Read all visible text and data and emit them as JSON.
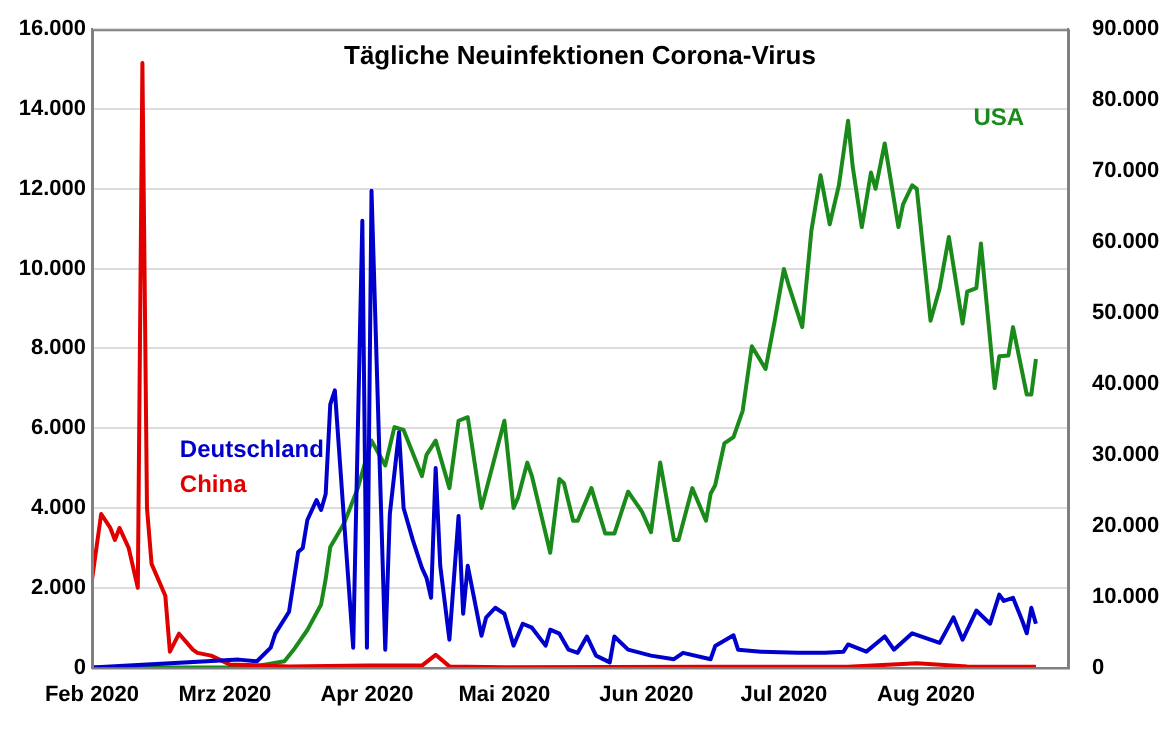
{
  "chart_data": {
    "type": "line",
    "title": "Tägliche Neuinfektionen Corona-Virus",
    "xlim": [
      "2020-02-01",
      "2020-09-01"
    ],
    "xticks": [
      {
        "value": "2020-02-01",
        "label": "Feb 2020"
      },
      {
        "value": "2020-03-01",
        "label": "Mrz 2020"
      },
      {
        "value": "2020-04-01",
        "label": "Apr 2020"
      },
      {
        "value": "2020-05-01",
        "label": "Mai 2020"
      },
      {
        "value": "2020-06-01",
        "label": "Jun 2020"
      },
      {
        "value": "2020-07-01",
        "label": "Jul 2020"
      },
      {
        "value": "2020-08-01",
        "label": "Aug 2020"
      }
    ],
    "ylim": [
      0,
      16000
    ],
    "yticks": [
      {
        "value": 0,
        "label": "0"
      },
      {
        "value": 2000,
        "label": "2.000"
      },
      {
        "value": 4000,
        "label": "4.000"
      },
      {
        "value": 6000,
        "label": "6.000"
      },
      {
        "value": 8000,
        "label": "8.000"
      },
      {
        "value": 10000,
        "label": "10.000"
      },
      {
        "value": 12000,
        "label": "12.000"
      },
      {
        "value": 14000,
        "label": "14.000"
      },
      {
        "value": 16000,
        "label": "16.000"
      }
    ],
    "y2lim": [
      0,
      90000
    ],
    "y2ticks": [
      {
        "value": 0,
        "label": "0"
      },
      {
        "value": 10000,
        "label": "10.000"
      },
      {
        "value": 20000,
        "label": "20.000"
      },
      {
        "value": 30000,
        "label": "30.000"
      },
      {
        "value": 40000,
        "label": "40.000"
      },
      {
        "value": 50000,
        "label": "50.000"
      },
      {
        "value": 60000,
        "label": "60.000"
      },
      {
        "value": 70000,
        "label": "70.000"
      },
      {
        "value": 80000,
        "label": "80.000"
      },
      {
        "value": 90000,
        "label": "90.000"
      }
    ],
    "grid": "y",
    "legend": false,
    "series": [
      {
        "name": "Deutschland",
        "color": "#0000cc",
        "x": [
          "2020-02-01",
          "2020-03-04",
          "2020-03-08",
          "2020-03-11",
          "2020-03-12",
          "2020-03-15",
          "2020-03-17",
          "2020-03-18",
          "2020-03-19",
          "2020-03-21",
          "2020-03-22",
          "2020-03-23",
          "2020-03-24",
          "2020-03-25",
          "2020-03-27",
          "2020-03-29",
          "2020-03-31",
          "2020-04-01",
          "2020-04-02",
          "2020-04-05",
          "2020-04-06",
          "2020-04-08",
          "2020-04-09",
          "2020-04-11",
          "2020-04-13",
          "2020-04-14",
          "2020-04-15",
          "2020-04-16",
          "2020-04-17",
          "2020-04-19",
          "2020-04-21",
          "2020-04-22",
          "2020-04-23",
          "2020-04-26",
          "2020-04-27",
          "2020-04-29",
          "2020-05-01",
          "2020-05-03",
          "2020-05-05",
          "2020-05-07",
          "2020-05-10",
          "2020-05-11",
          "2020-05-13",
          "2020-05-15",
          "2020-05-17",
          "2020-05-19",
          "2020-05-21",
          "2020-05-24",
          "2020-05-25",
          "2020-05-28",
          "2020-06-02",
          "2020-06-07",
          "2020-06-09",
          "2020-06-15",
          "2020-06-16",
          "2020-06-20",
          "2020-06-21",
          "2020-06-26",
          "2020-07-04",
          "2020-07-10",
          "2020-07-14",
          "2020-07-15",
          "2020-07-19",
          "2020-07-23",
          "2020-07-25",
          "2020-07-29",
          "2020-08-04",
          "2020-08-07",
          "2020-08-09",
          "2020-08-12",
          "2020-08-15",
          "2020-08-17",
          "2020-08-18",
          "2020-08-20",
          "2020-08-22",
          "2020-08-23",
          "2020-08-24",
          "2020-08-25"
        ],
        "values": [
          0,
          200,
          160,
          500,
          850,
          1400,
          2900,
          3000,
          3700,
          4200,
          3950,
          4350,
          6600,
          6950,
          3700,
          500,
          11200,
          500,
          11950,
          450,
          3850,
          5900,
          4000,
          3200,
          2500,
          2250,
          1750,
          5000,
          2550,
          700,
          3800,
          1350,
          2550,
          800,
          1250,
          1500,
          1350,
          550,
          1100,
          1000,
          550,
          950,
          850,
          450,
          370,
          780,
          300,
          130,
          780,
          450,
          300,
          210,
          370,
          210,
          540,
          810,
          450,
          400,
          370,
          370,
          400,
          580,
          400,
          780,
          450,
          860,
          620,
          1260,
          700,
          1430,
          1100,
          1830,
          1670,
          1750,
          1180,
          860,
          1500,
          1100
        ]
      },
      {
        "name": "China",
        "color": "#e00000",
        "x": [
          "2020-02-01",
          "2020-02-03",
          "2020-02-05",
          "2020-02-06",
          "2020-02-07",
          "2020-02-09",
          "2020-02-11",
          "2020-02-12",
          "2020-02-13",
          "2020-02-14",
          "2020-02-17",
          "2020-02-18",
          "2020-02-20",
          "2020-02-23",
          "2020-02-24",
          "2020-02-27",
          "2020-03-02",
          "2020-03-15",
          "2020-04-01",
          "2020-04-13",
          "2020-04-16",
          "2020-04-19",
          "2020-05-01",
          "2020-06-15",
          "2020-07-15",
          "2020-07-30",
          "2020-08-10",
          "2020-08-25"
        ],
        "values": [
          2200,
          3850,
          3500,
          3200,
          3500,
          3000,
          2000,
          15150,
          4000,
          2600,
          1800,
          400,
          850,
          450,
          370,
          300,
          80,
          30,
          50,
          50,
          320,
          30,
          10,
          20,
          20,
          110,
          30,
          20
        ]
      },
      {
        "name": "USA",
        "color": "#1a8a1a",
        "axis": "y2",
        "x": [
          "2020-02-01",
          "2020-03-06",
          "2020-03-14",
          "2020-03-16",
          "2020-03-19",
          "2020-03-22",
          "2020-03-23",
          "2020-03-24",
          "2020-03-27",
          "2020-03-30",
          "2020-04-02",
          "2020-04-05",
          "2020-04-07",
          "2020-04-09",
          "2020-04-13",
          "2020-04-14",
          "2020-04-16",
          "2020-04-19",
          "2020-04-21",
          "2020-04-23",
          "2020-04-26",
          "2020-05-01",
          "2020-05-03",
          "2020-05-04",
          "2020-05-06",
          "2020-05-07",
          "2020-05-11",
          "2020-05-13",
          "2020-05-14",
          "2020-05-16",
          "2020-05-17",
          "2020-05-20",
          "2020-05-23",
          "2020-05-25",
          "2020-05-28",
          "2020-05-31",
          "2020-06-02",
          "2020-06-04",
          "2020-06-07",
          "2020-06-08",
          "2020-06-11",
          "2020-06-14",
          "2020-06-15",
          "2020-06-16",
          "2020-06-18",
          "2020-06-20",
          "2020-06-22",
          "2020-06-24",
          "2020-06-27",
          "2020-06-29",
          "2020-07-01",
          "2020-07-02",
          "2020-07-05",
          "2020-07-07",
          "2020-07-09",
          "2020-07-11",
          "2020-07-13",
          "2020-07-15",
          "2020-07-16",
          "2020-07-18",
          "2020-07-20",
          "2020-07-21",
          "2020-07-23",
          "2020-07-26",
          "2020-07-27",
          "2020-07-29",
          "2020-07-30",
          "2020-08-02",
          "2020-08-04",
          "2020-08-06",
          "2020-08-09",
          "2020-08-10",
          "2020-08-12",
          "2020-08-13",
          "2020-08-16",
          "2020-08-17",
          "2020-08-19",
          "2020-08-20",
          "2020-08-23",
          "2020-08-24",
          "2020-08-25"
        ],
        "values": [
          0,
          0,
          900,
          2500,
          5300,
          8900,
          12500,
          17000,
          20300,
          25300,
          32000,
          28500,
          33900,
          33500,
          27000,
          30000,
          32000,
          25300,
          34800,
          35300,
          22500,
          34800,
          22500,
          24000,
          28900,
          27000,
          16200,
          26600,
          26000,
          20700,
          20700,
          25300,
          18900,
          18900,
          24800,
          22000,
          19100,
          28900,
          18000,
          18000,
          25300,
          20700,
          24500,
          25700,
          31600,
          32500,
          36200,
          45300,
          42100,
          48900,
          56200,
          54000,
          48000,
          61600,
          69400,
          62500,
          68000,
          77100,
          70700,
          62100,
          69800,
          67500,
          73900,
          62100,
          65300,
          68000,
          67500,
          48900,
          53500,
          60700,
          48500,
          53000,
          53500,
          59800,
          39400,
          43900,
          44000,
          48000,
          38500,
          38500,
          43500
        ]
      }
    ]
  }
}
